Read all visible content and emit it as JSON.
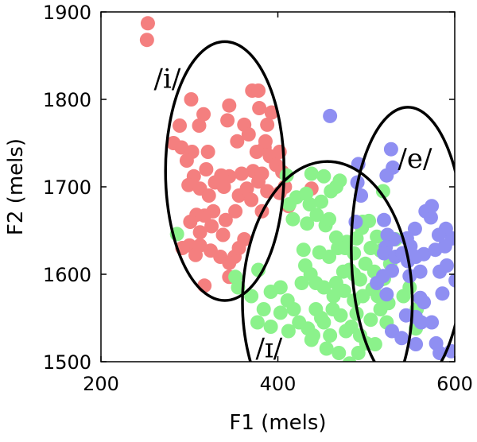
{
  "chart_data": {
    "type": "scatter",
    "title": "",
    "xlabel": "F1 (mels)",
    "ylabel": "F2 (mels)",
    "xlim": [
      200,
      600
    ],
    "ylim": [
      1500,
      1900
    ],
    "xticks": [
      200,
      400,
      600
    ],
    "yticks": [
      1500,
      1600,
      1700,
      1800,
      1900
    ],
    "x_tick_labels": [
      "200",
      "400",
      "600"
    ],
    "y_tick_labels": [
      "1500",
      "1600",
      "1700",
      "1800",
      "1900"
    ],
    "grid": false,
    "legend": "none",
    "series": [
      {
        "color": "#f47f7f",
        "points": [
          [
            253,
            1887
          ],
          [
            252,
            1868
          ],
          [
            302,
            1800
          ],
          [
            316,
            1783
          ],
          [
            289,
            1770
          ],
          [
            311,
            1770
          ],
          [
            321,
            1740
          ],
          [
            282,
            1750
          ],
          [
            291,
            1745
          ],
          [
            303,
            1740
          ],
          [
            297,
            1730
          ],
          [
            345,
            1793
          ],
          [
            371,
            1810
          ],
          [
            378,
            1810
          ],
          [
            379,
            1790
          ],
          [
            393,
            1785
          ],
          [
            388,
            1771
          ],
          [
            362,
            1771
          ],
          [
            343,
            1776
          ],
          [
            354,
            1752
          ],
          [
            367,
            1760
          ],
          [
            385,
            1745
          ],
          [
            376,
            1740
          ],
          [
            391,
            1735
          ],
          [
            402,
            1740
          ],
          [
            386,
            1752
          ],
          [
            398,
            1725
          ],
          [
            405,
            1717
          ],
          [
            372,
            1718
          ],
          [
            382,
            1715
          ],
          [
            359,
            1715
          ],
          [
            345,
            1712
          ],
          [
            336,
            1713
          ],
          [
            329,
            1705
          ],
          [
            319,
            1720
          ],
          [
            305,
            1712
          ],
          [
            299,
            1702
          ],
          [
            312,
            1698
          ],
          [
            322,
            1690
          ],
          [
            339,
            1700
          ],
          [
            356,
            1690
          ],
          [
            365,
            1698
          ],
          [
            378,
            1706
          ],
          [
            388,
            1695
          ],
          [
            402,
            1693
          ],
          [
            408,
            1700
          ],
          [
            370,
            1685
          ],
          [
            382,
            1672
          ],
          [
            352,
            1672
          ],
          [
            341,
            1662
          ],
          [
            327,
            1672
          ],
          [
            317,
            1667
          ],
          [
            308,
            1668
          ],
          [
            301,
            1660
          ],
          [
            312,
            1648
          ],
          [
            325,
            1655
          ],
          [
            338,
            1645
          ],
          [
            312,
            1633
          ],
          [
            300,
            1633
          ],
          [
            292,
            1630
          ],
          [
            307,
            1622
          ],
          [
            324,
            1627
          ],
          [
            335,
            1620
          ],
          [
            351,
            1620
          ],
          [
            362,
            1640
          ],
          [
            356,
            1630
          ],
          [
            412,
            1678
          ],
          [
            438,
            1698
          ],
          [
            345,
            1613
          ],
          [
            345,
            1597
          ],
          [
            317,
            1587
          ]
        ]
      },
      {
        "color": "#8bf28b",
        "points": [
          [
            286,
            1646
          ],
          [
            413,
            1680
          ],
          [
            352,
            1597
          ],
          [
            378,
            1605
          ],
          [
            355,
            1585
          ],
          [
            370,
            1575
          ],
          [
            392,
            1580
          ],
          [
            403,
            1585
          ],
          [
            384,
            1560
          ],
          [
            377,
            1545
          ],
          [
            392,
            1540
          ],
          [
            411,
            1570
          ],
          [
            403,
            1556
          ],
          [
            418,
            1560
          ],
          [
            412,
            1535
          ],
          [
            424,
            1545
          ],
          [
            434,
            1538
          ],
          [
            438,
            1525
          ],
          [
            449,
            1550
          ],
          [
            462,
            1560
          ],
          [
            471,
            1553
          ],
          [
            483,
            1540
          ],
          [
            493,
            1530
          ],
          [
            500,
            1521
          ],
          [
            491,
            1510
          ],
          [
            469,
            1510
          ],
          [
            455,
            1515
          ],
          [
            440,
            1530
          ],
          [
            452,
            1545
          ],
          [
            463,
            1575
          ],
          [
            475,
            1581
          ],
          [
            486,
            1570
          ],
          [
            496,
            1575
          ],
          [
            507,
            1583
          ],
          [
            516,
            1560
          ],
          [
            505,
            1548
          ],
          [
            489,
            1555
          ],
          [
            477,
            1535
          ],
          [
            459,
            1530
          ],
          [
            443,
            1560
          ],
          [
            452,
            1585
          ],
          [
            437,
            1600
          ],
          [
            427,
            1590
          ],
          [
            431,
            1610
          ],
          [
            447,
            1625
          ],
          [
            458,
            1620
          ],
          [
            468,
            1630
          ],
          [
            478,
            1637
          ],
          [
            489,
            1641
          ],
          [
            495,
            1653
          ],
          [
            503,
            1661
          ],
          [
            512,
            1643
          ],
          [
            516,
            1627
          ],
          [
            527,
            1612
          ],
          [
            520,
            1595
          ],
          [
            509,
            1603
          ],
          [
            499,
            1612
          ],
          [
            486,
            1624
          ],
          [
            476,
            1630
          ],
          [
            466,
            1642
          ],
          [
            454,
            1656
          ],
          [
            444,
            1668
          ],
          [
            436,
            1680
          ],
          [
            433,
            1658
          ],
          [
            449,
            1683
          ],
          [
            460,
            1695
          ],
          [
            470,
            1707
          ],
          [
            452,
            1712
          ],
          [
            438,
            1715
          ],
          [
            421,
            1688
          ],
          [
            417,
            1663
          ],
          [
            429,
            1628
          ],
          [
            443,
            1590
          ],
          [
            474,
            1603
          ],
          [
            486,
            1600
          ],
          [
            505,
            1630
          ],
          [
            533,
            1640
          ],
          [
            549,
            1585
          ],
          [
            557,
            1560
          ],
          [
            556,
            1538
          ],
          [
            542,
            1575
          ],
          [
            525,
            1567
          ],
          [
            517,
            1594
          ],
          [
            493,
            1594
          ],
          [
            466,
            1590
          ],
          [
            410,
            1713
          ],
          [
            432,
            1692
          ],
          [
            458,
            1663
          ],
          [
            481,
            1605
          ],
          [
            496,
            1660
          ],
          [
            513,
            1575
          ],
          [
            523,
            1545
          ],
          [
            481,
            1498
          ],
          [
            510,
            1520
          ],
          [
            466,
            1700
          ],
          [
            519,
            1695
          ]
        ]
      },
      {
        "color": "#8f8ff2",
        "points": [
          [
            459,
            1781
          ],
          [
            528,
            1743
          ],
          [
            530,
            1722
          ],
          [
            523,
            1713
          ],
          [
            491,
            1726
          ],
          [
            490,
            1705
          ],
          [
            494,
            1690
          ],
          [
            488,
            1660
          ],
          [
            520,
            1662
          ],
          [
            524,
            1645
          ],
          [
            531,
            1640
          ],
          [
            522,
            1631
          ],
          [
            520,
            1624
          ],
          [
            533,
            1620
          ],
          [
            547,
            1615
          ],
          [
            556,
            1620
          ],
          [
            565,
            1623
          ],
          [
            578,
            1628
          ],
          [
            589,
            1632
          ],
          [
            597,
            1641
          ],
          [
            590,
            1652
          ],
          [
            573,
            1665
          ],
          [
            567,
            1672
          ],
          [
            574,
            1678
          ],
          [
            555,
            1652
          ],
          [
            546,
            1641
          ],
          [
            550,
            1632
          ],
          [
            561,
            1603
          ],
          [
            549,
            1598
          ],
          [
            529,
            1604
          ],
          [
            519,
            1598
          ],
          [
            512,
            1590
          ],
          [
            523,
            1577
          ],
          [
            545,
            1553
          ],
          [
            556,
            1551
          ],
          [
            565,
            1568
          ],
          [
            583,
            1603
          ],
          [
            591,
            1610
          ],
          [
            586,
            1578
          ],
          [
            574,
            1545
          ],
          [
            562,
            1545
          ],
          [
            529,
            1535
          ],
          [
            540,
            1527
          ],
          [
            556,
            1520
          ],
          [
            579,
            1521
          ],
          [
            583,
            1510
          ],
          [
            596,
            1512
          ],
          [
            601,
            1593
          ],
          [
            561,
            1573
          ],
          [
            541,
            1624
          ],
          [
            582,
            1645
          ]
        ]
      }
    ],
    "regions": [
      {
        "label": "/i/",
        "cx": 340,
        "cy": 1718,
        "rx": 67,
        "ry": 148,
        "label_x": 275,
        "label_y": 1813
      },
      {
        "label": "/ɪ/",
        "cx": 456,
        "cy": 1568,
        "rx": 96,
        "ry": 161,
        "label_x": 390,
        "label_y": 1505
      },
      {
        "label": "/e/",
        "cx": 547,
        "cy": 1630,
        "rx": 64,
        "ry": 161,
        "label_x": 555,
        "label_y": 1722
      }
    ]
  }
}
